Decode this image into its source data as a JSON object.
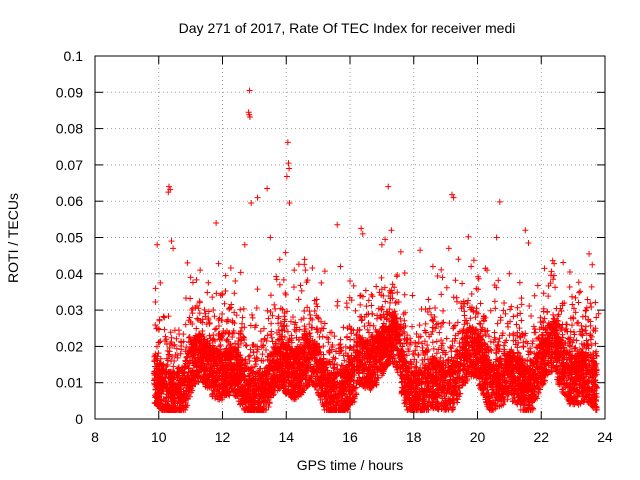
{
  "chart_data": {
    "type": "scatter",
    "title": "Day 271 of 2017, Rate Of TEC Index for receiver medi",
    "xlabel": "GPS time / hours",
    "ylabel": "ROTI / TECUs",
    "xlim": [
      8,
      24
    ],
    "ylim": [
      0,
      0.1
    ],
    "xticks": [
      8,
      10,
      12,
      14,
      16,
      18,
      20,
      22,
      24
    ],
    "xtick_labels": [
      "8",
      "10",
      "12",
      "14",
      "16",
      "18",
      "20",
      "22",
      "24"
    ],
    "yticks": [
      0,
      0.01,
      0.02,
      0.03,
      0.04,
      0.05,
      0.06,
      0.07,
      0.08,
      0.09,
      0.1
    ],
    "ytick_labels": [
      "0",
      "0.01",
      "0.02",
      "0.03",
      "0.04",
      "0.05",
      "0.06",
      "0.07",
      "0.08",
      "0.09",
      "0.1"
    ],
    "grid": true,
    "marker": "+",
    "marker_color": "#ff0000",
    "series": [
      {
        "points": [
          [
            12.85,
            0.0905
          ],
          [
            12.82,
            0.0845
          ],
          [
            12.84,
            0.0838
          ],
          [
            12.86,
            0.0832
          ],
          [
            14.05,
            0.0762
          ],
          [
            14.07,
            0.0705
          ],
          [
            14.09,
            0.069
          ],
          [
            14.02,
            0.0668
          ],
          [
            10.32,
            0.064
          ],
          [
            10.36,
            0.0632
          ],
          [
            10.3,
            0.0625
          ],
          [
            13.4,
            0.0635
          ],
          [
            17.2,
            0.064
          ],
          [
            19.2,
            0.0618
          ],
          [
            19.25,
            0.061
          ],
          [
            20.7,
            0.0598
          ],
          [
            12.9,
            0.0595
          ],
          [
            13.1,
            0.061
          ],
          [
            14.1,
            0.0595
          ],
          [
            11.8,
            0.054
          ],
          [
            15.6,
            0.0535
          ],
          [
            16.35,
            0.0525
          ],
          [
            16.4,
            0.051
          ],
          [
            20.6,
            0.05
          ],
          [
            21.5,
            0.052
          ],
          [
            21.6,
            0.0485
          ],
          [
            23.5,
            0.0455
          ],
          [
            23.6,
            0.0425
          ],
          [
            10.4,
            0.049
          ],
          [
            10.45,
            0.047
          ],
          [
            9.95,
            0.048
          ],
          [
            12.7,
            0.048
          ],
          [
            13.5,
            0.05
          ],
          [
            14.25,
            0.041
          ],
          [
            17.3,
            0.052
          ],
          [
            17.1,
            0.0495
          ],
          [
            17.0,
            0.048
          ],
          [
            18.2,
            0.0465
          ],
          [
            19.1,
            0.047
          ],
          [
            19.4,
            0.044
          ],
          [
            19.8,
            0.042
          ],
          [
            20.3,
            0.041
          ],
          [
            21.0,
            0.04
          ],
          [
            22.1,
            0.0415
          ],
          [
            22.4,
            0.0395
          ],
          [
            22.9,
            0.0405
          ],
          [
            18.6,
            0.042
          ],
          [
            18.9,
            0.039
          ],
          [
            15.7,
            0.042
          ],
          [
            16.0,
            0.038
          ],
          [
            15.1,
            0.0375
          ],
          [
            14.6,
            0.041
          ],
          [
            13.8,
            0.037
          ],
          [
            11.3,
            0.041
          ],
          [
            11.0,
            0.039
          ],
          [
            10.9,
            0.043
          ],
          [
            12.1,
            0.0395
          ],
          [
            12.4,
            0.038
          ],
          [
            10.05,
            0.0375
          ],
          [
            9.9,
            0.036
          ],
          [
            23.8,
            0.029
          ],
          [
            23.7,
            0.025
          ]
        ]
      }
    ]
  }
}
